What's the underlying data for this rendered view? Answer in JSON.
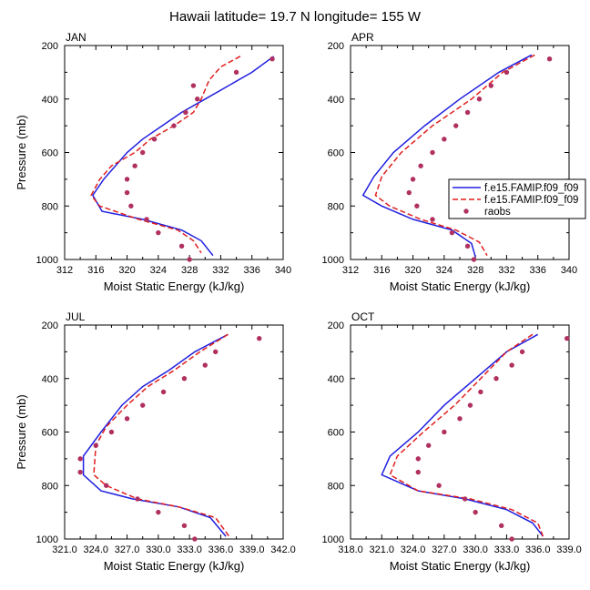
{
  "title": "Hawaii  latitude= 19.7 N longitude= 155 W",
  "colors": {
    "model1": "#1f1fe0",
    "model2": "#e01f1f",
    "obs": "#b03060"
  },
  "legend": {
    "entries": [
      "f.e15.FAMIP.f09_f09",
      "f.e15.FAMIP.f09_f09",
      "raobs"
    ]
  },
  "chart_data": [
    {
      "type": "line",
      "panel": "JAN",
      "title": "JAN",
      "xlabel": "Moist Static Energy (kJ/kg)",
      "ylabel": "Pressure (mb)",
      "xlim": [
        312,
        340
      ],
      "ylim": [
        200,
        1000
      ],
      "xticks": [
        "312",
        "316",
        "320",
        "324",
        "328",
        "332",
        "336",
        "340"
      ],
      "yticks": [
        "200",
        "400",
        "600",
        "800",
        "1000"
      ],
      "series": [
        {
          "name": "f.e15.FAMIP.f09_f09",
          "style": "solid",
          "points": [
            [
              338.8,
              240
            ],
            [
              336,
              300
            ],
            [
              333,
              350
            ],
            [
              330,
              400
            ],
            [
              327,
              450
            ],
            [
              324.5,
              500
            ],
            [
              322,
              550
            ],
            [
              320,
              600
            ],
            [
              318.5,
              650
            ],
            [
              317,
              700
            ],
            [
              315.6,
              760
            ],
            [
              316.8,
              820
            ],
            [
              322,
              850
            ],
            [
              327,
              890
            ],
            [
              329.5,
              930
            ],
            [
              331,
              985
            ]
          ]
        },
        {
          "name": "f.e15.FAMIP.f09_f09",
          "style": "dashed",
          "points": [
            [
              334.5,
              240
            ],
            [
              332,
              280
            ],
            [
              330.5,
              330
            ],
            [
              329.5,
              400
            ],
            [
              328.5,
              450
            ],
            [
              326,
              500
            ],
            [
              323,
              550
            ],
            [
              321,
              600
            ],
            [
              318,
              650
            ],
            [
              316.5,
              700
            ],
            [
              315.4,
              760
            ],
            [
              316.5,
              800
            ],
            [
              321.5,
              850
            ],
            [
              326.5,
              890
            ],
            [
              328.5,
              930
            ],
            [
              329.5,
              975
            ]
          ]
        },
        {
          "name": "raobs",
          "style": "markers",
          "points": [
            [
              338.6,
              250
            ],
            [
              334,
              300
            ],
            [
              328.5,
              350
            ],
            [
              329,
              400
            ],
            [
              327.5,
              450
            ],
            [
              326,
              500
            ],
            [
              323.5,
              550
            ],
            [
              322,
              600
            ],
            [
              321,
              650
            ],
            [
              320,
              700
            ],
            [
              320,
              750
            ],
            [
              320.5,
              800
            ],
            [
              322.5,
              850
            ],
            [
              324,
              900
            ],
            [
              327,
              950
            ],
            [
              328,
              1000
            ]
          ]
        }
      ]
    },
    {
      "type": "line",
      "panel": "APR",
      "title": "APR",
      "xlabel": "Moist Static Energy (kJ/kg)",
      "ylabel": "",
      "xlim": [
        312,
        340
      ],
      "ylim": [
        200,
        1000
      ],
      "xticks": [
        "312",
        "316",
        "320",
        "324",
        "328",
        "332",
        "336",
        "340"
      ],
      "yticks": [
        "200",
        "400",
        "600",
        "800",
        "1000"
      ],
      "series": [
        {
          "name": "f.e15.FAMIP.f09_f09",
          "style": "solid",
          "points": [
            [
              335.2,
              235
            ],
            [
              331,
              300
            ],
            [
              326,
              400
            ],
            [
              321.5,
              500
            ],
            [
              317.5,
              600
            ],
            [
              315,
              690
            ],
            [
              313.6,
              760
            ],
            [
              316,
              800
            ],
            [
              320,
              850
            ],
            [
              325,
              890
            ],
            [
              327.5,
              940
            ],
            [
              328,
              990
            ]
          ]
        },
        {
          "name": "f.e15.FAMIP.f09_f09",
          "style": "dashed",
          "points": [
            [
              335.6,
              235
            ],
            [
              331.5,
              300
            ],
            [
              327.5,
              400
            ],
            [
              322.5,
              500
            ],
            [
              318.5,
              600
            ],
            [
              316,
              690
            ],
            [
              315.2,
              760
            ],
            [
              317,
              800
            ],
            [
              321,
              850
            ],
            [
              325.5,
              890
            ],
            [
              328.5,
              935
            ],
            [
              329.5,
              985
            ]
          ]
        },
        {
          "name": "raobs",
          "style": "markers",
          "points": [
            [
              337.5,
              250
            ],
            [
              332,
              300
            ],
            [
              330,
              350
            ],
            [
              328.5,
              400
            ],
            [
              327,
              450
            ],
            [
              325.5,
              500
            ],
            [
              324,
              550
            ],
            [
              322.5,
              600
            ],
            [
              321,
              650
            ],
            [
              320,
              700
            ],
            [
              319.5,
              750
            ],
            [
              320.5,
              800
            ],
            [
              322.5,
              850
            ],
            [
              325,
              900
            ],
            [
              327,
              950
            ],
            [
              327.8,
              1000
            ]
          ]
        }
      ]
    },
    {
      "type": "line",
      "panel": "JUL",
      "title": "JUL",
      "xlabel": "Moist Static Energy (kJ/kg)",
      "ylabel": "Pressure (mb)",
      "xlim": [
        321,
        342
      ],
      "ylim": [
        200,
        1000
      ],
      "xticks": [
        "321.0",
        "324.0",
        "327.0",
        "330.0",
        "333.0",
        "336.0",
        "339.0",
        "342.0"
      ],
      "yticks": [
        "200",
        "400",
        "600",
        "800",
        "1000"
      ],
      "series": [
        {
          "name": "f.e15.FAMIP.f09_f09",
          "style": "solid",
          "points": [
            [
              336.7,
              235
            ],
            [
              333.5,
              300
            ],
            [
              331,
              370
            ],
            [
              328.5,
              430
            ],
            [
              326.5,
              500
            ],
            [
              324.5,
              600
            ],
            [
              322.8,
              690
            ],
            [
              322.8,
              760
            ],
            [
              324.5,
              820
            ],
            [
              327.5,
              850
            ],
            [
              332,
              880
            ],
            [
              335,
              920
            ],
            [
              336.5,
              990
            ]
          ]
        },
        {
          "name": "f.e15.FAMIP.f09_f09",
          "style": "dashed",
          "points": [
            [
              336.7,
              235
            ],
            [
              334,
              300
            ],
            [
              331.5,
              370
            ],
            [
              329,
              430
            ],
            [
              327,
              500
            ],
            [
              325,
              580
            ],
            [
              324,
              650
            ],
            [
              323.8,
              760
            ],
            [
              325,
              800
            ],
            [
              328,
              850
            ],
            [
              332,
              880
            ],
            [
              335.5,
              920
            ],
            [
              336.8,
              990
            ]
          ]
        },
        {
          "name": "raobs",
          "style": "markers",
          "points": [
            [
              339.7,
              250
            ],
            [
              335.5,
              300
            ],
            [
              334.5,
              350
            ],
            [
              332.5,
              400
            ],
            [
              330.5,
              450
            ],
            [
              328.5,
              500
            ],
            [
              327,
              550
            ],
            [
              325.5,
              600
            ],
            [
              324,
              650
            ],
            [
              322.5,
              700
            ],
            [
              322.5,
              750
            ],
            [
              325,
              800
            ],
            [
              328,
              850
            ],
            [
              330,
              900
            ],
            [
              332.5,
              950
            ],
            [
              333.5,
              1000
            ]
          ]
        }
      ]
    },
    {
      "type": "line",
      "panel": "OCT",
      "title": "OCT",
      "xlabel": "Moist Static Energy (kJ/kg)",
      "ylabel": "",
      "xlim": [
        318,
        339
      ],
      "ylim": [
        200,
        1000
      ],
      "xticks": [
        "318.0",
        "321.0",
        "324.0",
        "327.0",
        "330.0",
        "333.0",
        "336.0",
        "339.0"
      ],
      "yticks": [
        "200",
        "400",
        "600",
        "800",
        "1000"
      ],
      "series": [
        {
          "name": "f.e15.FAMIP.f09_f09",
          "style": "solid",
          "points": [
            [
              336,
              235
            ],
            [
              333,
              300
            ],
            [
              330,
              400
            ],
            [
              327,
              500
            ],
            [
              324.5,
              600
            ],
            [
              321.8,
              690
            ],
            [
              321,
              760
            ],
            [
              324.5,
              820
            ],
            [
              329,
              850
            ],
            [
              333,
              890
            ],
            [
              335.5,
              940
            ],
            [
              336.5,
              990
            ]
          ]
        },
        {
          "name": "f.e15.FAMIP.f09_f09",
          "style": "dashed",
          "points": [
            [
              335.5,
              235
            ],
            [
              333,
              300
            ],
            [
              330.5,
              400
            ],
            [
              328,
              500
            ],
            [
              325,
              600
            ],
            [
              322.5,
              690
            ],
            [
              321.8,
              760
            ],
            [
              324.5,
              820
            ],
            [
              329.5,
              850
            ],
            [
              333.5,
              890
            ],
            [
              336,
              940
            ],
            [
              336.5,
              990
            ]
          ]
        },
        {
          "name": "raobs",
          "style": "markers",
          "points": [
            [
              338.8,
              250
            ],
            [
              334.5,
              300
            ],
            [
              333.5,
              350
            ],
            [
              332,
              400
            ],
            [
              330.5,
              450
            ],
            [
              329.5,
              500
            ],
            [
              328.5,
              550
            ],
            [
              327,
              600
            ],
            [
              325.5,
              650
            ],
            [
              324.5,
              700
            ],
            [
              324.5,
              750
            ],
            [
              326.5,
              800
            ],
            [
              329,
              850
            ],
            [
              330,
              900
            ],
            [
              332.5,
              950
            ],
            [
              333.5,
              1000
            ]
          ]
        }
      ]
    }
  ]
}
